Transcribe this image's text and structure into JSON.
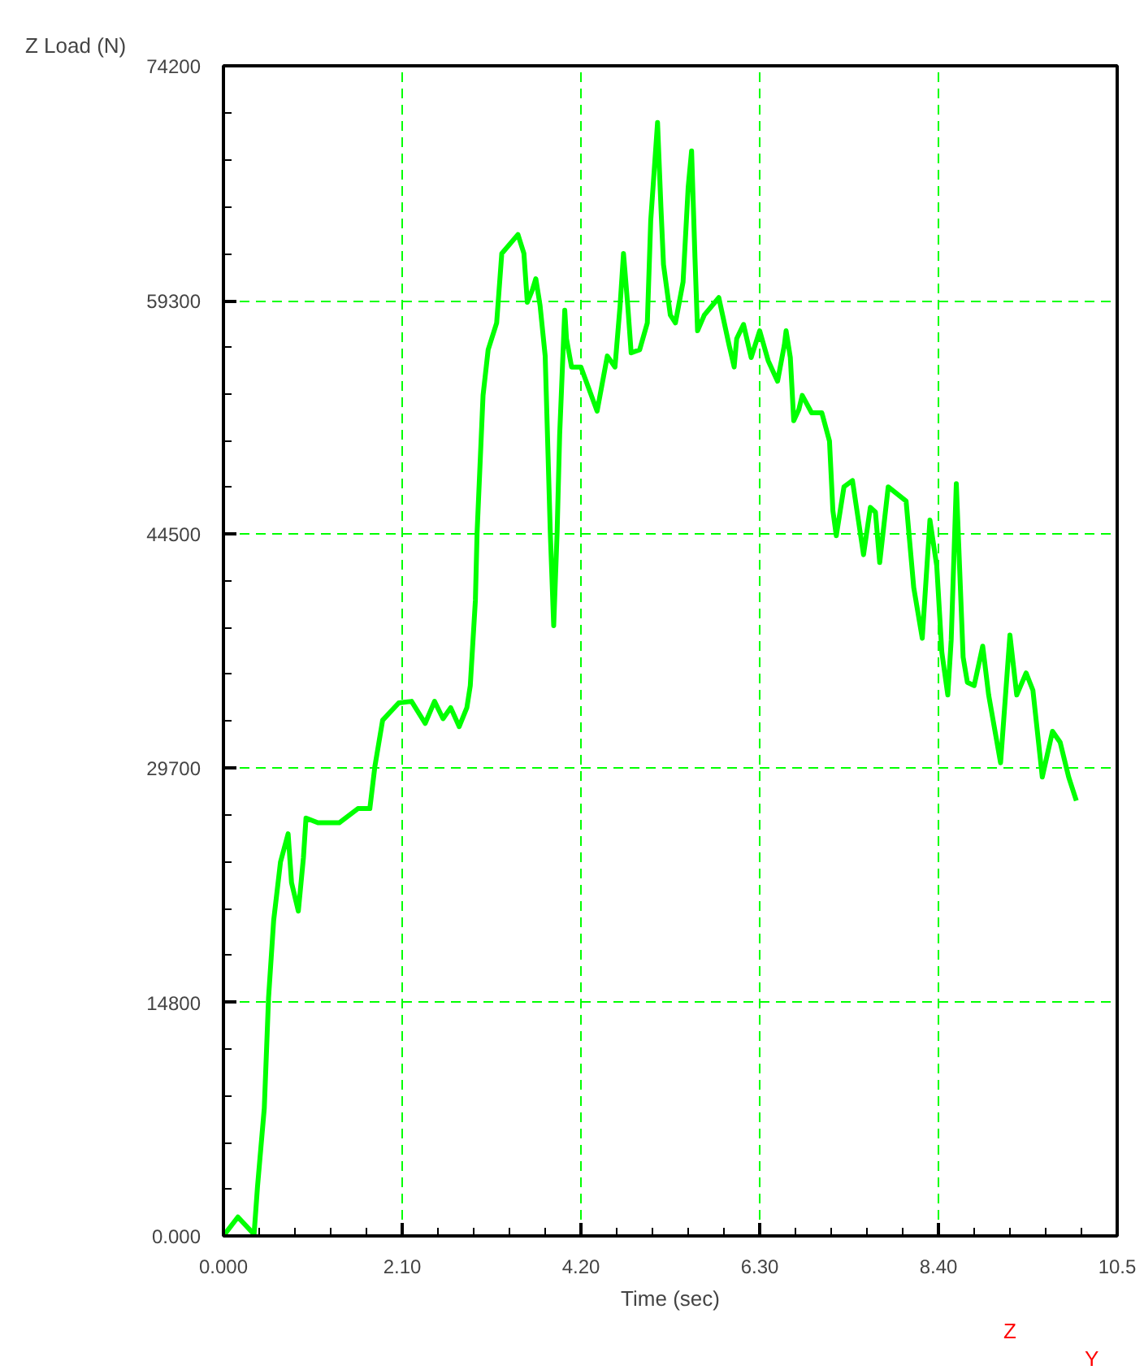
{
  "chart_data": {
    "type": "line",
    "xlabel": "Time (sec)",
    "ylabel": "Z Load (N)",
    "xlim": [
      0,
      10.5
    ],
    "ylim": [
      0,
      74200
    ],
    "xticks": [
      {
        "value": 0,
        "label": "0.000"
      },
      {
        "value": 2.1,
        "label": "2.10"
      },
      {
        "value": 4.2,
        "label": "4.20"
      },
      {
        "value": 6.3,
        "label": "6.30"
      },
      {
        "value": 8.4,
        "label": "8.40"
      },
      {
        "value": 10.5,
        "label": "10.5"
      }
    ],
    "yticks": [
      {
        "value": 0,
        "label": "0.000"
      },
      14800,
      29700,
      44500,
      59300,
      74200
    ],
    "grid": true,
    "marker": "none",
    "line_style": "solid",
    "annotations": [
      "Z",
      "Y"
    ],
    "series": [
      {
        "color": "#00ff00",
        "x": [
          0,
          0.17,
          0.36,
          0.4,
          0.48,
          0.53,
          0.59,
          0.67,
          0.76,
          0.8,
          0.88,
          0.94,
          0.97,
          1.11,
          1.36,
          1.58,
          1.72,
          1.78,
          1.87,
          2.06,
          2.21,
          2.37,
          2.48,
          2.58,
          2.67,
          2.77,
          2.86,
          2.9,
          2.96,
          2.98,
          3.05,
          3.11,
          3.21,
          3.27,
          3.46,
          3.53,
          3.57,
          3.63,
          3.67,
          3.72,
          3.78,
          3.84,
          3.88,
          3.92,
          3.95,
          4.01,
          4.03,
          4.09,
          4.2,
          4.39,
          4.51,
          4.6,
          4.66,
          4.7,
          4.75,
          4.79,
          4.89,
          4.98,
          5.02,
          5.1,
          5.14,
          5.17,
          5.25,
          5.31,
          5.4,
          5.46,
          5.5,
          5.54,
          5.57,
          5.65,
          5.82,
          5.94,
          6.0,
          6.03,
          6.11,
          6.2,
          6.3,
          6.4,
          6.51,
          6.59,
          6.61,
          6.66,
          6.7,
          6.76,
          6.8,
          6.91,
          7.03,
          7.12,
          7.16,
          7.2,
          7.29,
          7.39,
          7.52,
          7.6,
          7.66,
          7.71,
          7.81,
          8.02,
          8.11,
          8.21,
          8.3,
          8.38,
          8.44,
          8.51,
          8.55,
          8.61,
          8.69,
          8.74,
          8.82,
          8.92,
          8.99,
          9.13,
          9.24,
          9.32,
          9.43,
          9.51,
          9.62,
          9.74,
          9.83,
          9.93,
          10.02
        ],
        "values": [
          0,
          1200,
          100,
          3100,
          8100,
          15100,
          20000,
          23700,
          25500,
          22400,
          20600,
          24000,
          26500,
          26200,
          26200,
          27100,
          27100,
          29800,
          32700,
          33800,
          33900,
          32500,
          33900,
          32800,
          33500,
          32300,
          33500,
          34900,
          40300,
          44600,
          53300,
          56200,
          57900,
          62300,
          63500,
          62300,
          59200,
          60000,
          60700,
          59000,
          55800,
          44600,
          38700,
          44600,
          50800,
          58700,
          56900,
          55100,
          55100,
          52300,
          55800,
          55100,
          59000,
          62300,
          59000,
          56000,
          56200,
          57900,
          64400,
          70600,
          65200,
          61600,
          58400,
          57900,
          60500,
          66500,
          68800,
          62000,
          57400,
          58400,
          59500,
          56500,
          55100,
          56900,
          57800,
          55700,
          57400,
          55500,
          54200,
          56500,
          57400,
          55700,
          51700,
          52400,
          53300,
          52200,
          52200,
          50400,
          46000,
          44400,
          47500,
          47900,
          43200,
          46200,
          45900,
          42700,
          47500,
          46600,
          41100,
          37900,
          45400,
          42500,
          37000,
          34300,
          37800,
          47700,
          36700,
          35100,
          34900,
          37400,
          34300,
          30000,
          38100,
          34300,
          35700,
          34600,
          29100,
          32000,
          31300,
          29100,
          27600
        ]
      }
    ]
  }
}
